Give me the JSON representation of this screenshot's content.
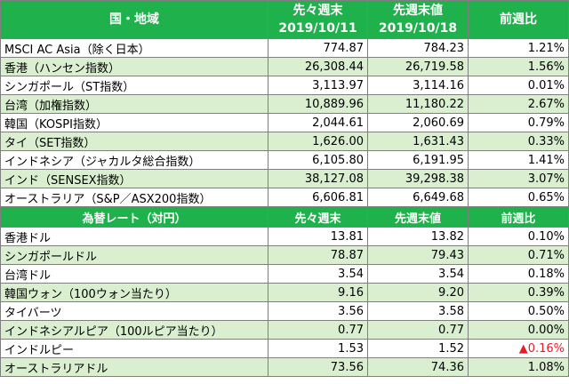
{
  "stocks_header": {
    "region": "国・地域",
    "prev_week_line1": "先々週末",
    "prev_week_line2": "2019/10/11",
    "last_week_line1": "先週末値",
    "last_week_line2": "2019/10/18",
    "change": "前週比"
  },
  "stocks": [
    {
      "name": "MSCI AC Asia（除く日本）",
      "prev": "774.87",
      "last": "784.23",
      "change": "1.21%"
    },
    {
      "name": "香港（ハンセン指数）",
      "prev": "26,308.44",
      "last": "26,719.58",
      "change": "1.56%"
    },
    {
      "name": "シンガポール（ST指数）",
      "prev": "3,113.97",
      "last": "3,114.16",
      "change": "0.01%"
    },
    {
      "name": "台湾（加権指数）",
      "prev": "10,889.96",
      "last": "11,180.22",
      "change": "2.67%"
    },
    {
      "name": "韓国（KOSPI指数）",
      "prev": "2,044.61",
      "last": "2,060.69",
      "change": "0.79%"
    },
    {
      "name": "タイ（SET指数）",
      "prev": "1,626.00",
      "last": "1,631.43",
      "change": "0.33%"
    },
    {
      "name": "インドネシア（ジャカルタ総合指数）",
      "prev": "6,105.80",
      "last": "6,191.95",
      "change": "1.41%"
    },
    {
      "name": "インド（SENSEX指数）",
      "prev": "38,127.08",
      "last": "39,298.38",
      "change": "3.07%"
    },
    {
      "name": "オーストラリア（S&P／ASX200指数）",
      "prev": "6,606.81",
      "last": "6,649.68",
      "change": "0.65%"
    }
  ],
  "fx_header": {
    "title": "為替レート（対円）",
    "prev_week": "先々週末",
    "last_week": "先週末値",
    "change": "前週比"
  },
  "fx": [
    {
      "name": "香港ドル",
      "prev": "13.81",
      "last": "13.82",
      "change": "0.10%"
    },
    {
      "name": "シンガポールドル",
      "prev": "78.87",
      "last": "79.43",
      "change": "0.71%"
    },
    {
      "name": "台湾ドル",
      "prev": "3.54",
      "last": "3.54",
      "change": "0.18%"
    },
    {
      "name": "韓国ウォン（100ウォン当たり）",
      "prev": "9.16",
      "last": "9.20",
      "change": "0.39%"
    },
    {
      "name": "タイバーツ",
      "prev": "3.56",
      "last": "3.58",
      "change": "0.50%"
    },
    {
      "name": "インドネシアルピア（100ルピア当たり）",
      "prev": "0.77",
      "last": "0.77",
      "change": "0.00%"
    },
    {
      "name": "インドルピー",
      "prev": "1.53",
      "last": "1.52",
      "change": "▲0.16%",
      "change_color": "#e31e24"
    },
    {
      "name": "オーストラリアドル",
      "prev": "73.56",
      "last": "74.36",
      "change": "1.08%"
    }
  ],
  "colors": {
    "header_green": "#1fb14b",
    "row_alt_green": "#d9efcf",
    "negative_red": "#e31e24"
  }
}
